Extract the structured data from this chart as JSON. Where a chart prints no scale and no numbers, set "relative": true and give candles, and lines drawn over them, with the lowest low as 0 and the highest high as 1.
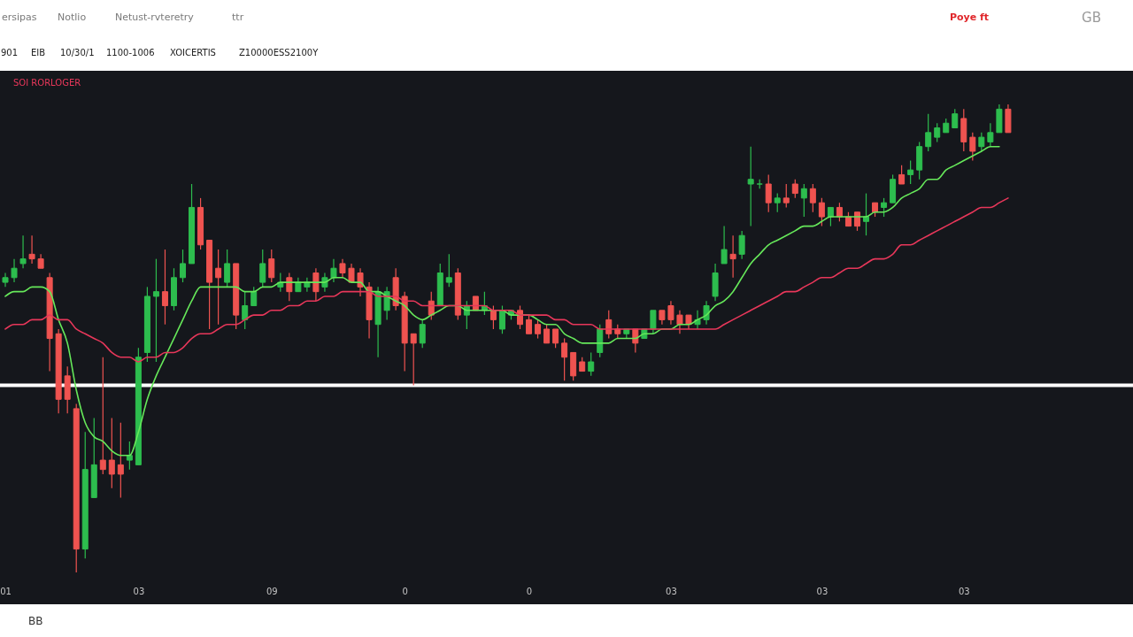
{
  "chart_data": {
    "type": "candlestick",
    "relative": true,
    "legend": "top left",
    "line_style": "solid",
    "categories": [
      "01",
      null,
      null,
      null,
      null,
      null,
      null,
      null,
      null,
      null,
      null,
      null,
      null,
      null,
      null,
      "03",
      null,
      null,
      null,
      null,
      null,
      null,
      null,
      null,
      null,
      null,
      null,
      null,
      null,
      null,
      "09",
      null,
      null,
      null,
      null,
      null,
      null,
      null,
      null,
      null,
      null,
      null,
      null,
      null,
      null,
      "0",
      null,
      null,
      null,
      null,
      null,
      null,
      null,
      null,
      null,
      null,
      null,
      null,
      null,
      "0",
      null,
      null,
      null,
      null,
      null,
      null,
      null,
      null,
      null,
      null,
      null,
      null,
      null,
      null,
      null,
      "03",
      null,
      null,
      null,
      null,
      null,
      null,
      null,
      null,
      null,
      null,
      null,
      null,
      null,
      null,
      null,
      null,
      "03",
      null,
      null,
      null,
      null,
      null,
      null,
      null,
      null,
      null,
      null,
      null,
      null,
      null,
      null,
      null,
      "03",
      null,
      null,
      null,
      null,
      null
    ],
    "ohlc": [
      [
        0.62,
        0.64,
        0.61,
        0.63
      ],
      [
        0.63,
        0.67,
        0.62,
        0.65
      ],
      [
        0.66,
        0.72,
        0.65,
        0.67
      ],
      [
        0.68,
        0.72,
        0.66,
        0.67
      ],
      [
        0.67,
        0.68,
        0.65,
        0.65
      ],
      [
        0.63,
        0.64,
        0.43,
        0.5
      ],
      [
        0.51,
        0.52,
        0.34,
        0.37
      ],
      [
        0.42,
        0.44,
        0.34,
        0.37
      ],
      [
        0.35,
        0.36,
        0,
        0.05
      ],
      [
        0.05,
        0.3,
        0.03,
        0.22
      ],
      [
        0.16,
        0.33,
        0.16,
        0.23
      ],
      [
        0.24,
        0.46,
        0.21,
        0.22
      ],
      [
        0.24,
        0.33,
        0.18,
        0.21
      ],
      [
        0.23,
        0.32,
        0.16,
        0.21
      ],
      [
        0.24,
        0.28,
        0.22,
        0.25
      ],
      [
        0.23,
        0.48,
        0.23,
        0.46
      ],
      [
        0.47,
        0.61,
        0.45,
        0.59
      ],
      [
        0.59,
        0.67,
        0.45,
        0.6
      ],
      [
        0.6,
        0.69,
        0.53,
        0.57
      ],
      [
        0.57,
        0.65,
        0.56,
        0.63
      ],
      [
        0.63,
        0.69,
        0.62,
        0.66
      ],
      [
        0.66,
        0.83,
        0.66,
        0.78
      ],
      [
        0.78,
        0.8,
        0.69,
        0.7
      ],
      [
        0.71,
        0.71,
        0.52,
        0.62
      ],
      [
        0.65,
        0.69,
        0.53,
        0.63
      ],
      [
        0.62,
        0.69,
        0.61,
        0.66
      ],
      [
        0.66,
        0.66,
        0.52,
        0.55
      ],
      [
        0.54,
        0.6,
        0.52,
        0.57
      ],
      [
        0.57,
        0.61,
        0.57,
        0.6
      ],
      [
        0.62,
        0.69,
        0.61,
        0.66
      ],
      [
        0.67,
        0.69,
        0.62,
        0.63
      ],
      [
        0.61,
        0.64,
        0.6,
        0.62
      ],
      [
        0.63,
        0.64,
        0.58,
        0.6
      ],
      [
        0.6,
        0.63,
        0.6,
        0.62
      ],
      [
        0.61,
        0.63,
        0.6,
        0.62
      ],
      [
        0.64,
        0.65,
        0.58,
        0.6
      ],
      [
        0.61,
        0.64,
        0.6,
        0.63
      ],
      [
        0.63,
        0.67,
        0.62,
        0.65
      ],
      [
        0.66,
        0.67,
        0.63,
        0.64
      ],
      [
        0.65,
        0.66,
        0.62,
        0.62
      ],
      [
        0.64,
        0.65,
        0.59,
        0.61
      ],
      [
        0.61,
        0.62,
        0.5,
        0.54
      ],
      [
        0.53,
        0.61,
        0.46,
        0.6
      ],
      [
        0.56,
        0.61,
        0.54,
        0.6
      ],
      [
        0.63,
        0.65,
        0.56,
        0.57
      ],
      [
        0.59,
        0.6,
        0.43,
        0.49
      ],
      [
        0.51,
        0.51,
        0.4,
        0.49
      ],
      [
        0.49,
        0.54,
        0.48,
        0.53
      ],
      [
        0.58,
        0.6,
        0.54,
        0.55
      ],
      [
        0.57,
        0.66,
        0.57,
        0.64
      ],
      [
        0.62,
        0.68,
        0.61,
        0.63
      ],
      [
        0.64,
        0.65,
        0.54,
        0.55
      ],
      [
        0.55,
        0.58,
        0.52,
        0.57
      ],
      [
        0.59,
        0.59,
        0.56,
        0.56
      ],
      [
        0.56,
        0.6,
        0.55,
        0.57
      ],
      [
        0.56,
        0.57,
        0.52,
        0.54
      ],
      [
        0.52,
        0.57,
        0.51,
        0.56
      ],
      [
        0.55,
        0.56,
        0.54,
        0.56
      ],
      [
        0.56,
        0.57,
        0.52,
        0.53
      ],
      [
        0.54,
        0.55,
        0.51,
        0.51
      ],
      [
        0.53,
        0.54,
        0.5,
        0.51
      ],
      [
        0.52,
        0.53,
        0.49,
        0.49
      ],
      [
        0.52,
        0.52,
        0.48,
        0.49
      ],
      [
        0.49,
        0.5,
        0.41,
        0.46
      ],
      [
        0.47,
        0.47,
        0.41,
        0.42
      ],
      [
        0.45,
        0.46,
        0.43,
        0.43
      ],
      [
        0.43,
        0.47,
        0.42,
        0.45
      ],
      [
        0.47,
        0.53,
        0.46,
        0.52
      ],
      [
        0.54,
        0.56,
        0.5,
        0.51
      ],
      [
        0.52,
        0.53,
        0.5,
        0.51
      ],
      [
        0.51,
        0.52,
        0.5,
        0.52
      ],
      [
        0.52,
        0.52,
        0.47,
        0.49
      ],
      [
        0.5,
        0.52,
        0.5,
        0.52
      ],
      [
        0.52,
        0.56,
        0.51,
        0.56
      ],
      [
        0.56,
        0.56,
        0.53,
        0.54
      ],
      [
        0.57,
        0.58,
        0.53,
        0.54
      ],
      [
        0.55,
        0.56,
        0.51,
        0.53
      ],
      [
        0.55,
        0.55,
        0.52,
        0.53
      ],
      [
        0.53,
        0.56,
        0.52,
        0.54
      ],
      [
        0.54,
        0.58,
        0.53,
        0.57
      ],
      [
        0.59,
        0.66,
        0.58,
        0.64
      ],
      [
        0.66,
        0.74,
        0.66,
        0.69
      ],
      [
        0.68,
        0.72,
        0.63,
        0.67
      ],
      [
        0.68,
        0.73,
        0.67,
        0.72
      ],
      [
        0.83,
        0.91,
        0.74,
        0.84
      ],
      [
        0.83,
        0.84,
        0.82,
        0.83
      ],
      [
        0.83,
        0.85,
        0.77,
        0.79
      ],
      [
        0.79,
        0.81,
        0.77,
        0.8
      ],
      [
        0.8,
        0.83,
        0.78,
        0.79
      ],
      [
        0.83,
        0.84,
        0.8,
        0.81
      ],
      [
        0.8,
        0.83,
        0.76,
        0.82
      ],
      [
        0.82,
        0.83,
        0.77,
        0.79
      ],
      [
        0.79,
        0.8,
        0.74,
        0.76
      ],
      [
        0.76,
        0.78,
        0.74,
        0.78
      ],
      [
        0.78,
        0.79,
        0.75,
        0.76
      ],
      [
        0.76,
        0.77,
        0.74,
        0.74
      ],
      [
        0.77,
        0.77,
        0.73,
        0.74
      ],
      [
        0.75,
        0.81,
        0.72,
        0.76
      ],
      [
        0.79,
        0.79,
        0.76,
        0.77
      ],
      [
        0.78,
        0.8,
        0.76,
        0.79
      ],
      [
        0.79,
        0.85,
        0.79,
        0.84
      ],
      [
        0.85,
        0.87,
        0.83,
        0.83
      ],
      [
        0.85,
        0.88,
        0.83,
        0.86
      ],
      [
        0.86,
        0.92,
        0.84,
        0.91
      ],
      [
        0.91,
        0.98,
        0.9,
        0.94
      ],
      [
        0.93,
        0.96,
        0.92,
        0.95
      ],
      [
        0.94,
        0.97,
        0.94,
        0.96
      ],
      [
        0.95,
        0.99,
        0.95,
        0.98
      ],
      [
        0.97,
        0.99,
        0.9,
        0.92
      ],
      [
        0.93,
        0.94,
        0.88,
        0.9
      ],
      [
        0.91,
        0.94,
        0.9,
        0.93
      ],
      [
        0.92,
        0.96,
        0.91,
        0.94
      ],
      [
        0.94,
        1,
        0.94,
        0.99
      ],
      [
        0.99,
        1,
        0.94,
        0.94
      ]
    ],
    "colors": [
      "#2dbd4e",
      "#2dbd4e",
      "#2dbd4e",
      "#ef5350",
      "#ef5350",
      "#ef5350",
      "#ef5350",
      "#ef5350",
      "#ef5350",
      "#2dbd4e",
      "#2dbd4e",
      "#ef5350",
      "#ef5350",
      "#ef5350",
      "#2dbd4e",
      "#2dbd4e",
      "#2dbd4e",
      "#2dbd4e",
      "#ef5350",
      "#2dbd4e",
      "#2dbd4e",
      "#2dbd4e",
      "#ef5350",
      "#ef5350",
      "#ef5350",
      "#2dbd4e",
      "#ef5350",
      "#2dbd4e",
      "#2dbd4e",
      "#2dbd4e",
      "#ef5350",
      "#2dbd4e",
      "#ef5350",
      "#2dbd4e",
      "#2dbd4e",
      "#ef5350",
      "#2dbd4e",
      "#2dbd4e",
      "#ef5350",
      "#ef5350",
      "#ef5350",
      "#ef5350",
      "#2dbd4e",
      "#2dbd4e",
      "#ef5350",
      "#ef5350",
      "#ef5350",
      "#2dbd4e",
      "#ef5350",
      "#2dbd4e",
      "#2dbd4e",
      "#ef5350",
      "#2dbd4e",
      "#ef5350",
      "#2dbd4e",
      "#ef5350",
      "#2dbd4e",
      "#2dbd4e",
      "#ef5350",
      "#ef5350",
      "#ef5350",
      "#ef5350",
      "#ef5350",
      "#ef5350",
      "#ef5350",
      "#ef5350",
      "#2dbd4e",
      "#2dbd4e",
      "#ef5350",
      "#ef5350",
      "#2dbd4e",
      "#ef5350",
      "#2dbd4e",
      "#2dbd4e",
      "#ef5350",
      "#ef5350",
      "#ef5350",
      "#ef5350",
      "#2dbd4e",
      "#2dbd4e",
      "#2dbd4e",
      "#2dbd4e",
      "#ef5350",
      "#2dbd4e",
      "#2dbd4e",
      "#2dbd4e",
      "#ef5350",
      "#2dbd4e",
      "#ef5350",
      "#ef5350",
      "#2dbd4e",
      "#ef5350",
      "#ef5350",
      "#2dbd4e",
      "#ef5350",
      "#ef5350",
      "#ef5350",
      "#2dbd4e",
      "#ef5350",
      "#2dbd4e",
      "#2dbd4e",
      "#ef5350",
      "#2dbd4e",
      "#2dbd4e",
      "#2dbd4e",
      "#2dbd4e",
      "#2dbd4e",
      "#2dbd4e",
      "#ef5350",
      "#ef5350",
      "#2dbd4e",
      "#2dbd4e",
      "#2dbd4e",
      "#ef5350"
    ],
    "series": [
      {
        "type": "line",
        "color": "#66e85a",
        "values": [
          0.59,
          0.6,
          0.6,
          0.61,
          0.61,
          0.6,
          0.54,
          0.49,
          0.39,
          0.32,
          0.29,
          0.28,
          0.26,
          0.25,
          0.25,
          0.3,
          0.37,
          0.42,
          0.46,
          0.5,
          0.54,
          0.58,
          0.61,
          0.61,
          0.61,
          0.61,
          0.61,
          0.6,
          0.6,
          0.61,
          0.61,
          0.62,
          0.62,
          0.62,
          0.62,
          0.62,
          0.62,
          0.63,
          0.63,
          0.62,
          0.62,
          0.6,
          0.6,
          0.59,
          0.58,
          0.57,
          0.55,
          0.54,
          0.55,
          0.56,
          0.57,
          0.57,
          0.56,
          0.56,
          0.56,
          0.56,
          0.56,
          0.55,
          0.55,
          0.55,
          0.54,
          0.53,
          0.53,
          0.51,
          0.5,
          0.49,
          0.49,
          0.49,
          0.49,
          0.5,
          0.5,
          0.5,
          0.51,
          0.51,
          0.52,
          0.52,
          0.53,
          0.53,
          0.54,
          0.55,
          0.57,
          0.58,
          0.6,
          0.63,
          0.66,
          0.68,
          0.7,
          0.71,
          0.72,
          0.73,
          0.74,
          0.74,
          0.75,
          0.76,
          0.76,
          0.76,
          0.76,
          0.76,
          0.77,
          0.77,
          0.78,
          0.8,
          0.81,
          0.82,
          0.84,
          0.84,
          0.86,
          0.87,
          0.88,
          0.89,
          0.9,
          0.91,
          0.91,
          null
        ]
      },
      {
        "type": "line",
        "name": "SOI RORLOGER",
        "color": "#e8375a",
        "values": [
          0.52,
          0.53,
          0.53,
          0.54,
          0.54,
          0.55,
          0.54,
          0.54,
          0.52,
          0.51,
          0.5,
          0.49,
          0.47,
          0.46,
          0.46,
          0.45,
          0.46,
          0.46,
          0.47,
          0.47,
          0.48,
          0.5,
          0.51,
          0.51,
          0.52,
          0.53,
          0.53,
          0.54,
          0.55,
          0.55,
          0.56,
          0.56,
          0.57,
          0.57,
          0.58,
          0.58,
          0.59,
          0.59,
          0.6,
          0.6,
          0.6,
          0.6,
          0.59,
          0.59,
          0.59,
          0.58,
          0.58,
          0.57,
          0.57,
          0.57,
          0.57,
          0.57,
          0.57,
          0.57,
          0.57,
          0.56,
          0.56,
          0.56,
          0.55,
          0.55,
          0.55,
          0.55,
          0.54,
          0.54,
          0.53,
          0.53,
          0.53,
          0.52,
          0.52,
          0.52,
          0.52,
          0.52,
          0.52,
          0.52,
          0.52,
          0.52,
          0.52,
          0.52,
          0.52,
          0.52,
          0.52,
          0.53,
          0.54,
          0.55,
          0.56,
          0.57,
          0.58,
          0.59,
          0.6,
          0.6,
          0.61,
          0.62,
          0.63,
          0.63,
          0.64,
          0.65,
          0.65,
          0.66,
          0.67,
          0.67,
          0.68,
          0.7,
          0.7,
          0.71,
          0.72,
          0.73,
          0.74,
          0.75,
          0.76,
          0.77,
          0.78,
          0.78,
          0.79,
          0.8
        ]
      }
    ],
    "ref_lines": [
      {
        "axis": "y",
        "value": 0.4,
        "color": "#ffffff"
      }
    ],
    "annotations": [
      "ersipas",
      "Notlio",
      "Netust-rvteretry",
      "ttr",
      "Poye ft",
      "GB",
      "901",
      "EIB",
      "10/30/1",
      "1100-1006",
      "XOICERTIS",
      "Z10000ESS2100Y",
      "BB"
    ]
  }
}
